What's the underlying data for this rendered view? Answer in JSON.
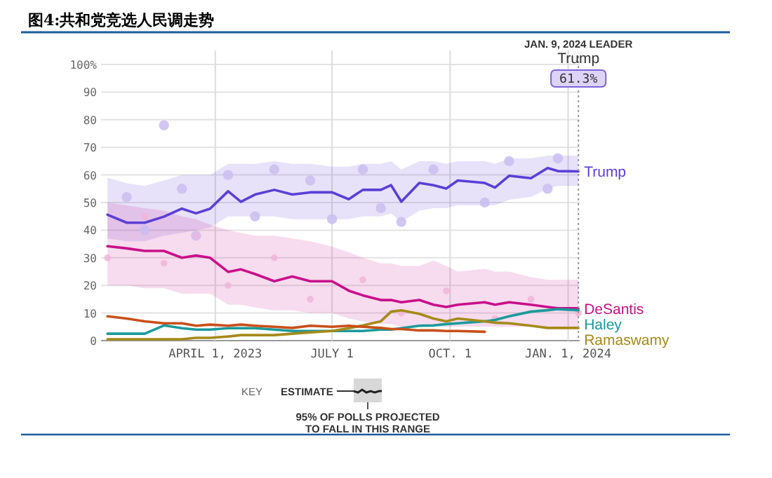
{
  "chart_data": {
    "type": "line",
    "title": "图4:共和党竞选人民调走势",
    "x": [
      "2023-01-07",
      "2023-01-22",
      "2023-02-05",
      "2023-02-20",
      "2023-03-06",
      "2023-03-17",
      "2023-03-28",
      "2023-04-11",
      "2023-04-21",
      "2023-05-02",
      "2023-05-17",
      "2023-05-31",
      "2023-06-14",
      "2023-07-01",
      "2023-07-14",
      "2023-07-25",
      "2023-08-08",
      "2023-08-16",
      "2023-08-24",
      "2023-09-07",
      "2023-09-18",
      "2023-09-28",
      "2023-10-07",
      "2023-10-28",
      "2023-11-05",
      "2023-11-16",
      "2023-12-03",
      "2023-12-16",
      "2023-12-24",
      "2024-01-09"
    ],
    "series": [
      {
        "name": "Trump",
        "color": "#5b3fd6",
        "values": [
          45.6,
          42.7,
          42.7,
          44.9,
          47.8,
          46.1,
          47.8,
          54.1,
          50.3,
          52.9,
          54.6,
          52.9,
          53.7,
          53.7,
          51.2,
          54.6,
          54.6,
          56.3,
          50.3,
          57.1,
          56.3,
          55.1,
          58,
          57.1,
          55.4,
          59.7,
          58.8,
          62.5,
          61.4,
          61.3
        ],
        "upper": [
          59,
          57,
          56,
          58,
          60,
          60,
          60,
          64,
          64,
          64,
          65,
          64,
          64,
          63,
          63,
          64,
          64,
          65,
          62,
          65,
          65,
          64,
          65,
          65,
          64,
          66,
          66,
          67,
          67,
          67
        ],
        "lower": [
          37,
          36,
          36,
          38,
          39,
          40,
          41,
          45,
          45,
          45,
          45,
          44,
          44,
          44,
          44,
          45,
          45,
          46,
          43,
          47,
          48,
          48,
          49,
          49,
          49,
          51,
          52,
          55,
          56,
          56
        ]
      },
      {
        "name": "DeSantis",
        "color": "#c8108a",
        "values": [
          34.2,
          33.4,
          32.5,
          32.5,
          30,
          30.8,
          30,
          24.9,
          25.8,
          24.1,
          21.5,
          23.2,
          21.5,
          21.5,
          18.1,
          16.4,
          14.7,
          14.7,
          13.9,
          14.7,
          13,
          12.2,
          13,
          13.9,
          13,
          13.9,
          13,
          12.2,
          11.7,
          11.7
        ],
        "upper": [
          50,
          49,
          48,
          47,
          45,
          44,
          42,
          40,
          39,
          38,
          38,
          37,
          36,
          34,
          32,
          30,
          28,
          28,
          27,
          27,
          29,
          27,
          25,
          26,
          25,
          25,
          23,
          22,
          22,
          22
        ],
        "lower": [
          20,
          20,
          19,
          19,
          17,
          17,
          17,
          13,
          13,
          12,
          11,
          11,
          10,
          10,
          8,
          7,
          6,
          6,
          5,
          5,
          5,
          5,
          5,
          5,
          5,
          5,
          5,
          5,
          5,
          5
        ]
      },
      {
        "name": "Haley",
        "color": "#1a9a9a",
        "values": [
          2.5,
          2.5,
          2.5,
          5.5,
          4.5,
          4,
          4,
          4.5,
          4.5,
          4.5,
          4,
          3.5,
          3.5,
          3.5,
          3.5,
          3.5,
          4,
          4,
          4.5,
          5.4,
          5.5,
          6,
          6.3,
          7,
          7.5,
          8.8,
          10.5,
          11,
          11.4,
          11
        ]
      },
      {
        "name": "Ramaswamy",
        "color": "#a58a1a",
        "values": [
          0.5,
          0.5,
          0.5,
          0.5,
          0.5,
          1,
          1,
          1.5,
          2,
          2,
          2,
          2.5,
          3,
          3.5,
          4.5,
          5.5,
          7,
          10.5,
          11,
          9.7,
          8,
          7,
          8,
          7,
          6.5,
          6.3,
          5.4,
          4.6,
          4.6,
          4.6
        ]
      },
      {
        "color": "#c8501a",
        "values": [
          8.8,
          8,
          7,
          6.3,
          6.3,
          5.4,
          5.8,
          5.4,
          5.8,
          5.4,
          5,
          4.6,
          5.4,
          5,
          5.4,
          5,
          4.6,
          4.2,
          4.2,
          3.7,
          3.7,
          3.5,
          3.5,
          3.2,
          null,
          null,
          null,
          null,
          null,
          null
        ]
      },
      {
        "type": "scatter",
        "color": "#c9bdf0",
        "x": [
          "2023-01-22",
          "2023-02-05",
          "2023-02-20",
          "2023-03-06",
          "2023-03-17",
          "2023-04-11",
          "2023-05-02",
          "2023-05-17",
          "2023-06-14",
          "2023-07-01",
          "2023-07-25",
          "2023-08-08",
          "2023-08-24",
          "2023-09-18",
          "2023-10-28",
          "2023-11-16",
          "2023-12-16",
          "2023-12-24"
        ],
        "values": [
          52,
          40,
          78,
          55,
          38,
          60,
          45,
          62,
          58,
          44,
          62,
          48,
          43,
          62,
          50,
          65,
          55,
          66
        ]
      },
      {
        "type": "scatter",
        "color": "#f0b5d8",
        "x": [
          "2023-01-07",
          "2023-02-05",
          "2023-02-20",
          "2023-03-17",
          "2023-04-11",
          "2023-05-17",
          "2023-06-14",
          "2023-07-25",
          "2023-08-24",
          "2023-09-28",
          "2023-11-05",
          "2023-12-03",
          "2024-01-09"
        ],
        "values": [
          30,
          45,
          28,
          38,
          20,
          30,
          15,
          22,
          10,
          18,
          8,
          15,
          10
        ]
      }
    ],
    "xlim": [
      "2023-01-02",
      "2024-01-10"
    ],
    "xticks": [
      {
        "value": "2023-04-01",
        "label": "APRIL 1, 2023"
      },
      {
        "value": "2023-07-01",
        "label": "JULY 1"
      },
      {
        "value": "2023-10-01",
        "label": "OCT. 1"
      },
      {
        "value": "2024-01-01",
        "label": "JAN. 1, 2024"
      }
    ],
    "ylim": [
      0,
      100
    ],
    "yticks": [
      0,
      10,
      20,
      30,
      40,
      50,
      60,
      70,
      80,
      90,
      {
        "value": 100,
        "label": "100%"
      }
    ],
    "grid": true,
    "ref_lines": [
      {
        "axis": "x",
        "value": "2024-01-09",
        "label": "JAN. 9, 2024 LEADER",
        "color": "#999999",
        "line_style": "dotted"
      }
    ],
    "annotations": [
      "Trump",
      "61.3%",
      "KEY",
      "ESTIMATE",
      "95% OF POLLS PROJECTED TO FALL IN THIS RANGE"
    ]
  }
}
